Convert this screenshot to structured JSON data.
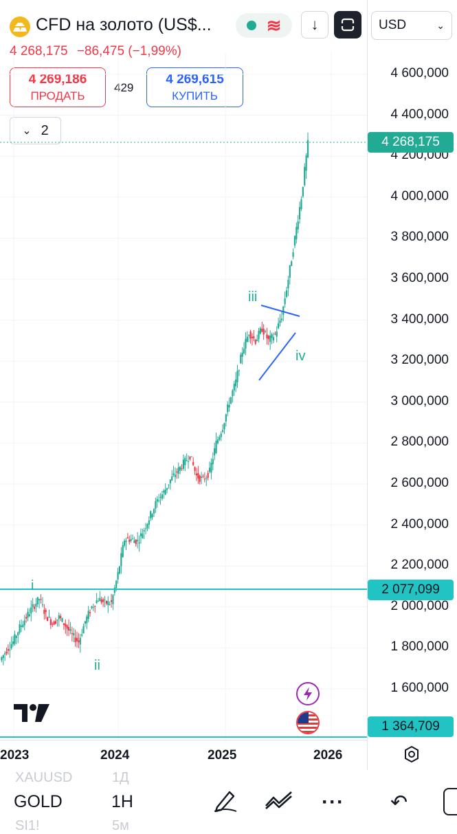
{
  "symbol": {
    "title": "CFD на золото (US$...",
    "logo_icon": "gold-bars-icon"
  },
  "quote": {
    "last": "4 268,175",
    "change": "−86,475 (−1,99%)"
  },
  "trade": {
    "sell_price": "4 269,186",
    "sell_label": "ПРОДАТЬ",
    "spread": "429",
    "buy_price": "4 269,615",
    "buy_label": "КУПИТЬ"
  },
  "indicators_toggle": {
    "count": "2"
  },
  "currency": {
    "value": "USD"
  },
  "price_axis": {
    "ticks": [
      "4 600,000",
      "4 400,000",
      "4 200,000",
      "4 000,000",
      "3 800,000",
      "3 600,000",
      "3 400,000",
      "3 200,000",
      "3 000,000",
      "2 800,000",
      "2 600,000",
      "2 400,000",
      "2 200,000",
      "2 000,000",
      "1 800,000",
      "1 600,000"
    ],
    "current_price": "4 268,175",
    "level_1": "2 077,099",
    "level_2": "1 364,709"
  },
  "time_axis": {
    "labels": [
      "2023",
      "2024",
      "2025",
      "2026"
    ]
  },
  "waves": {
    "i": "i",
    "ii": "ii",
    "iii": "iii",
    "iv": "iv"
  },
  "bottom_toolbar": {
    "symbol_ghost": "XAUUSD",
    "interval_ghost": "1Д",
    "symbol": "GOLD",
    "interval": "1H",
    "symbol_ghost2": "SI1!",
    "interval_ghost2": "5м"
  },
  "colors": {
    "up": "#22ab94",
    "down": "#f23645",
    "level": "#22c3c3",
    "sell": "#f23645",
    "buy": "#2962ff"
  },
  "chart_data": {
    "type": "candlestick",
    "title": "CFD на золото",
    "ylim": [
      1500,
      4700
    ],
    "x_labels": [
      "2023",
      "2024",
      "2025",
      "2026"
    ],
    "horizontal_levels": [
      2077.099,
      1364.709
    ],
    "current_price": 4268.175,
    "approx_closes": [
      1740,
      1790,
      1830,
      1900,
      1950,
      2000,
      2040,
      1960,
      1920,
      1950,
      1910,
      1860,
      1830,
      1930,
      2000,
      2040,
      2020,
      2020,
      2160,
      2330,
      2330,
      2320,
      2380,
      2450,
      2520,
      2560,
      2620,
      2660,
      2700,
      2740,
      2640,
      2620,
      2660,
      2800,
      2880,
      3000,
      3100,
      3250,
      3340,
      3300,
      3360,
      3300,
      3330,
      3420,
      3600,
      3800,
      4000,
      4260
    ]
  }
}
